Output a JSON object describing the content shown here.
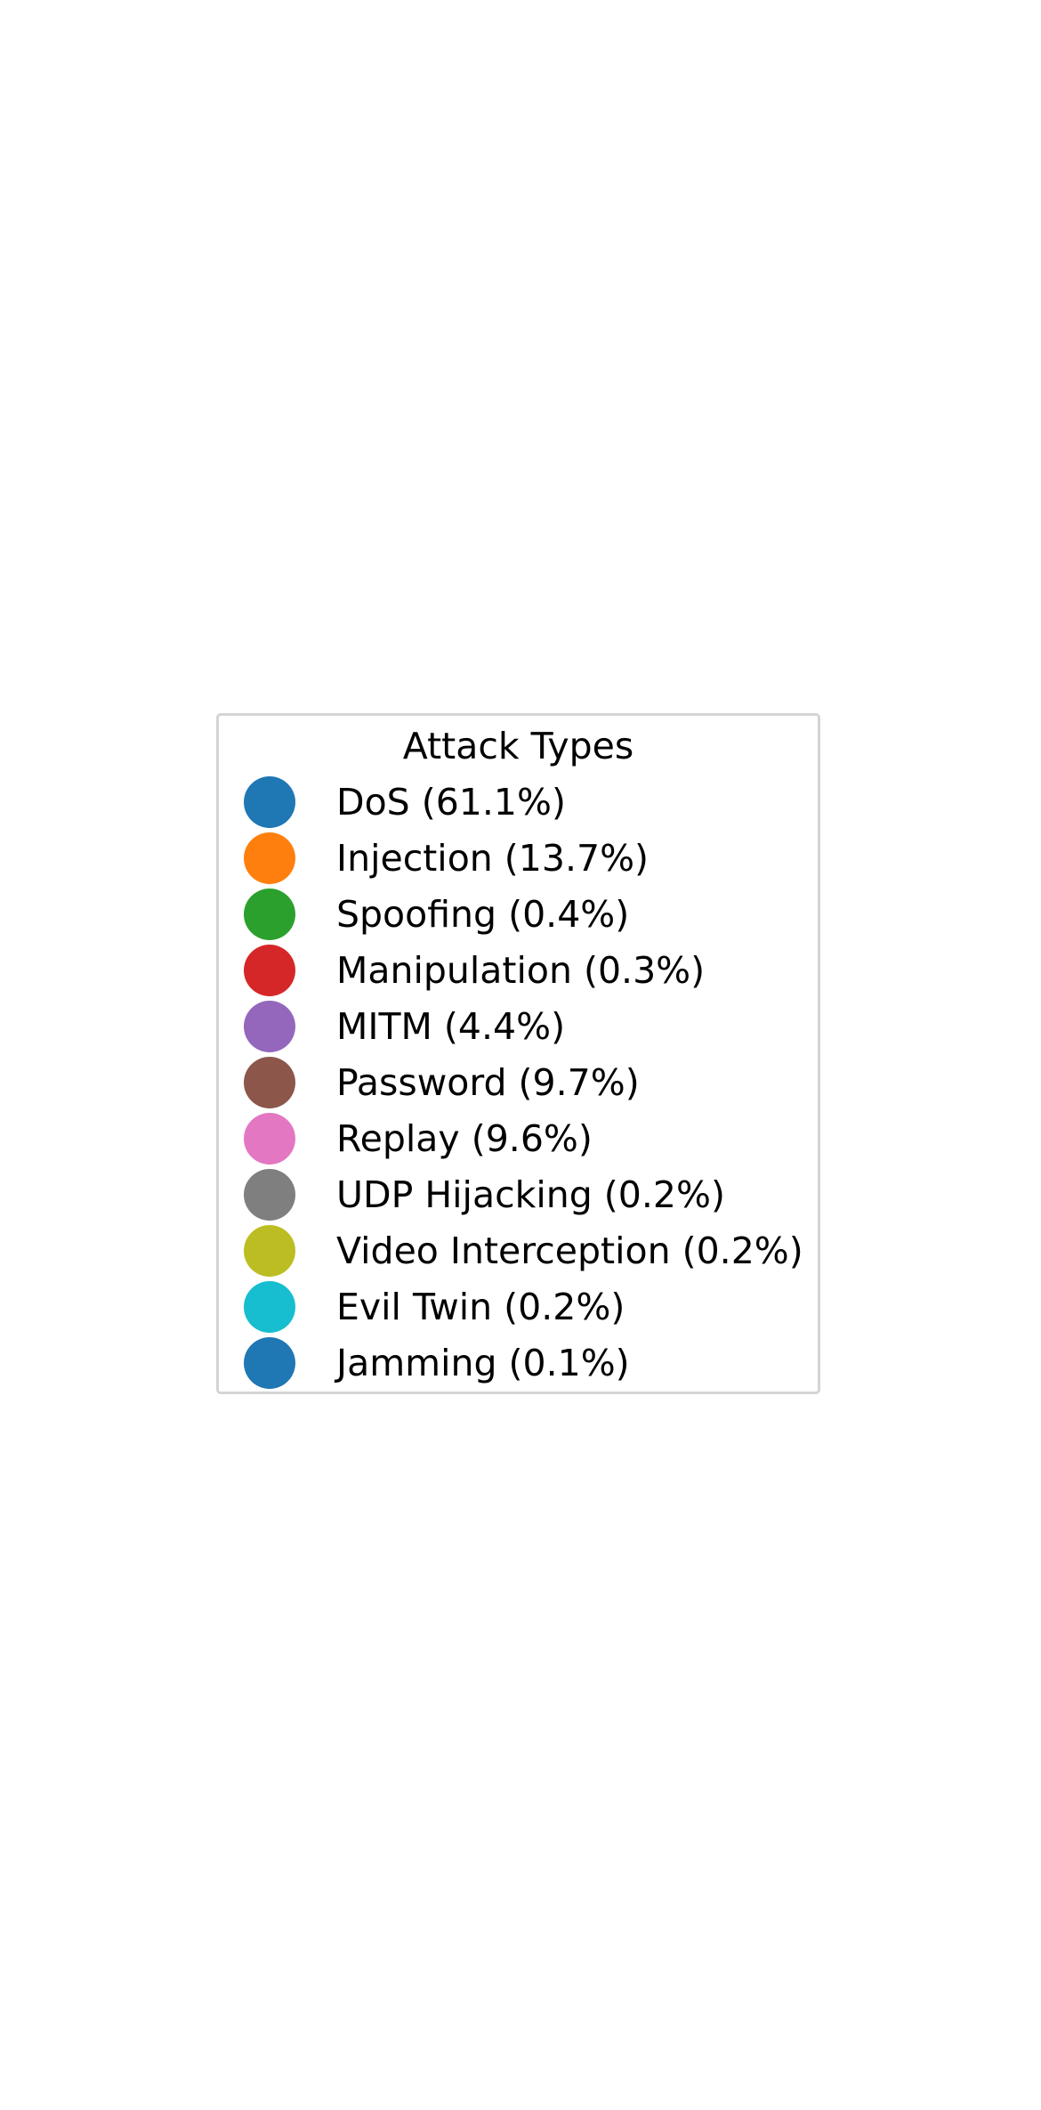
{
  "chart_data": {
    "type": "pie",
    "legend": {
      "title": "Attack Types",
      "placement": "center"
    },
    "slices": [
      {
        "label": "DoS (61.1%)",
        "name": "DoS",
        "value": 61.1,
        "color": "#1f77b4"
      },
      {
        "label": "Injection (13.7%)",
        "name": "Injection",
        "value": 13.7,
        "color": "#ff7f0e"
      },
      {
        "label": "Spoofing (0.4%)",
        "name": "Spoofing",
        "value": 0.4,
        "color": "#2ca02c"
      },
      {
        "label": "Manipulation (0.3%)",
        "name": "Manipulation",
        "value": 0.3,
        "color": "#d62728"
      },
      {
        "label": "MITM (4.4%)",
        "name": "MITM",
        "value": 4.4,
        "color": "#9467bd"
      },
      {
        "label": "Password (9.7%)",
        "name": "Password",
        "value": 9.7,
        "color": "#8c564b"
      },
      {
        "label": "Replay (9.6%)",
        "name": "Replay",
        "value": 9.6,
        "color": "#e377c2"
      },
      {
        "label": "UDP Hijacking (0.2%)",
        "name": "UDP Hijacking",
        "value": 0.2,
        "color": "#7f7f7f"
      },
      {
        "label": "Video Interception (0.2%)",
        "name": "Video Interception",
        "value": 0.2,
        "color": "#bcbd22"
      },
      {
        "label": "Evil Twin (0.2%)",
        "name": "Evil Twin",
        "value": 0.2,
        "color": "#17becf"
      },
      {
        "label": "Jamming (0.1%)",
        "name": "Jamming",
        "value": 0.1,
        "color": "#1f77b4"
      }
    ]
  }
}
